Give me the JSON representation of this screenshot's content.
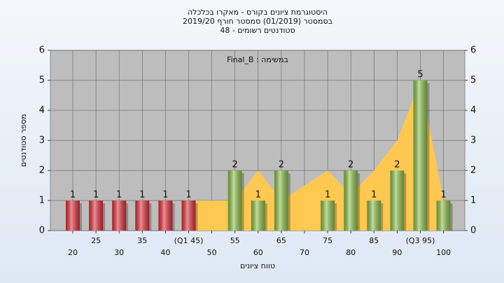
{
  "chart_data": {
    "type": "bar",
    "title_lines": [
      "היסטוגרמת ציונים בקורס - מאקרו בכלכלה",
      "בסמסטר  (01/2019)  סמסטר חורף 2019/20",
      "סטודנטים רשומים - 48"
    ],
    "annotation": "Final_B : במשימה",
    "y_label": "מספר סטודנטים",
    "x_label": "טווח ציונים",
    "categories": [
      "20",
      "25",
      "30",
      "35",
      "40",
      "(Q1 45)",
      "50",
      "55",
      "60",
      "65",
      "70",
      "75",
      "80",
      "85",
      "90",
      "(Q3 95)",
      "100"
    ],
    "values": [
      1,
      1,
      1,
      1,
      1,
      1,
      null,
      2,
      1,
      2,
      null,
      1,
      2,
      1,
      2,
      5,
      1
    ],
    "colors": [
      "#e0303a",
      "#e0303a",
      "#e0303a",
      "#e0303a",
      "#e0303a",
      "#e0303a",
      null,
      "#8cc04a",
      "#8cc04a",
      "#8cc04a",
      null,
      "#8cc04a",
      "#8cc04a",
      "#8cc04a",
      "#8cc04a",
      "#8cc04a",
      "#8cc04a"
    ],
    "area": {
      "color": "#ffc850",
      "values": [
        null,
        null,
        null,
        null,
        null,
        1,
        1,
        1,
        2,
        1,
        1.5,
        2,
        1.2,
        2,
        3,
        5,
        1
      ]
    },
    "ylim": [
      0,
      6
    ],
    "yticks": [
      0,
      1,
      2,
      3,
      4,
      5,
      6
    ],
    "grid": true
  }
}
